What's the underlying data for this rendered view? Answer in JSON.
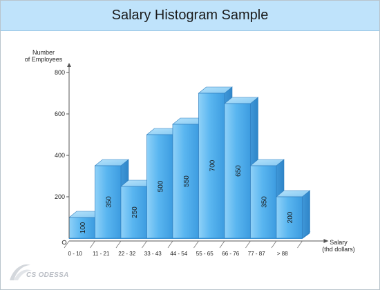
{
  "title": "Salary Histogram Sample",
  "chart_data": {
    "type": "bar",
    "title": "Salary Histogram Sample",
    "ylabel_lines": [
      "Number",
      "of Employees"
    ],
    "xlabel_lines": [
      "Salary",
      "(thd dollars)"
    ],
    "origin_label": "0",
    "categories": [
      "0 - 10",
      "11 - 21",
      "22 - 32",
      "33 - 43",
      "44 - 54",
      "55 - 65",
      "66 - 76",
      "77 - 87",
      "> 88"
    ],
    "values": [
      100,
      350,
      250,
      500,
      550,
      700,
      650,
      350,
      200
    ],
    "value_labels": [
      "100",
      "350",
      "250",
      "500",
      "550",
      "700",
      "650",
      "350",
      "200"
    ],
    "yticks": [
      200,
      400,
      600,
      800
    ],
    "ytick_labels": [
      "200",
      "400",
      "600",
      "800"
    ],
    "ylim": [
      0,
      800
    ],
    "grid": false,
    "style": "3d",
    "bar_color": "#5ab4ee"
  },
  "logo": {
    "text": "CS ODESSA"
  }
}
